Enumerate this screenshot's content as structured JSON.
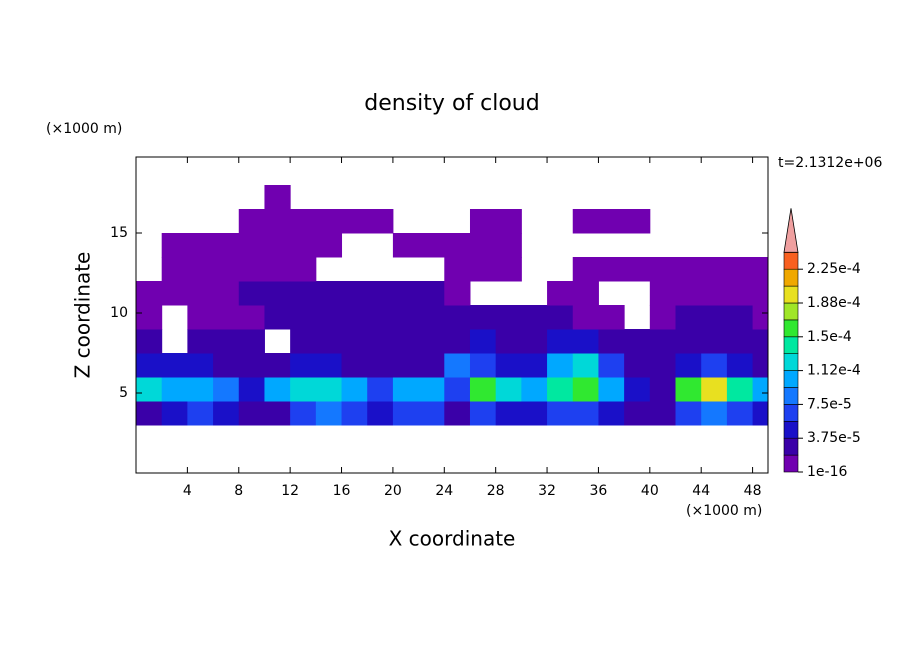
{
  "chart_data": {
    "type": "contour",
    "title": "density of cloud",
    "time_label": "t=2.1312e+06",
    "x_label": "X coordinate",
    "y_label": "Z coordinate",
    "x_unit": "(×1000 m)",
    "y_unit": "(×1000 m)",
    "xlim": [
      0,
      49.2
    ],
    "ylim": [
      0,
      19.75
    ],
    "xticks": [
      4,
      8,
      12,
      16,
      20,
      24,
      28,
      32,
      36,
      40,
      44,
      48
    ],
    "yticks": [
      5,
      10,
      15
    ],
    "x_edges": [
      0,
      2,
      4,
      6,
      8,
      10,
      12,
      14,
      16,
      18,
      20,
      22,
      24,
      26,
      28,
      30,
      32,
      34,
      36,
      38,
      40,
      42,
      44,
      46,
      48,
      50
    ],
    "z_edges": [
      3,
      4.5,
      6,
      7.5,
      9,
      10.5,
      12,
      13.5,
      15,
      16.5,
      18
    ],
    "values": [
      [
        2e-05,
        5e-05,
        6e-05,
        5e-05,
        2e-05,
        2e-05,
        6e-05,
        8e-05,
        7e-05,
        5e-05,
        7e-05,
        6e-05,
        3e-05,
        6e-05,
        5e-05,
        5e-05,
        6e-05,
        7e-05,
        4e-05,
        2e-05,
        2e-05,
        6e-05,
        8e-05,
        6e-05,
        4e-05
      ],
      [
        0.00012,
        0.0001,
        0.00011,
        9e-05,
        4e-05,
        0.0001,
        0.00012,
        0.00013,
        0.00011,
        6e-05,
        0.00011,
        0.0001,
        6e-05,
        0.00016,
        0.00012,
        0.00011,
        0.00014,
        0.00015,
        0.0001,
        4e-05,
        3e-05,
        0.00016,
        0.00019,
        0.00014,
        0.0001
      ],
      [
        4e-05,
        5e-05,
        4e-05,
        3e-05,
        2e-05,
        3e-05,
        4e-05,
        4e-05,
        3e-05,
        2e-05,
        3e-05,
        3e-05,
        8e-05,
        6e-05,
        4e-05,
        5e-05,
        0.0001,
        0.00012,
        7e-05,
        2e-05,
        2e-05,
        5e-05,
        6e-05,
        5e-05,
        3e-05
      ],
      [
        2e-05,
        null,
        2e-05,
        2e-05,
        2.5e-05,
        null,
        2e-05,
        2e-05,
        2e-05,
        2e-05,
        2.5e-05,
        2.5e-05,
        3e-05,
        4e-05,
        3e-05,
        3e-05,
        4e-05,
        4e-05,
        3e-05,
        2e-05,
        2e-05,
        2.5e-05,
        2.5e-05,
        2.5e-05,
        2e-05
      ],
      [
        1e-05,
        null,
        1e-05,
        1e-05,
        1.5e-05,
        2.5e-05,
        2.5e-05,
        2.5e-05,
        2.5e-05,
        2.5e-05,
        2.5e-05,
        2.5e-05,
        2.5e-05,
        2.5e-05,
        2e-05,
        2e-05,
        2e-05,
        1e-05,
        1e-05,
        null,
        1e-05,
        2e-05,
        2e-05,
        2e-05,
        1e-05
      ],
      [
        1e-05,
        1e-05,
        1e-05,
        1.5e-05,
        2e-05,
        2e-05,
        2.5e-05,
        2e-05,
        2.5e-05,
        2.5e-05,
        2e-05,
        2e-05,
        1e-05,
        null,
        null,
        null,
        1e-05,
        1e-05,
        null,
        null,
        1e-05,
        1e-05,
        1e-05,
        1e-05,
        1e-05
      ],
      [
        null,
        1e-05,
        1e-05,
        1e-05,
        1e-05,
        1e-05,
        1e-05,
        null,
        null,
        null,
        null,
        null,
        1e-05,
        1e-05,
        1e-05,
        null,
        null,
        1e-05,
        1e-05,
        1e-05,
        1e-05,
        1e-05,
        1e-05,
        1e-05,
        1e-05
      ],
      [
        null,
        1e-05,
        1e-05,
        1e-05,
        1e-05,
        1e-05,
        1e-05,
        1e-05,
        null,
        null,
        1e-05,
        1e-05,
        1e-05,
        1e-05,
        1e-05,
        null,
        null,
        null,
        null,
        null,
        null,
        null,
        null,
        null,
        null
      ],
      [
        null,
        null,
        null,
        null,
        1e-05,
        1e-05,
        1e-05,
        1e-05,
        1e-05,
        1e-05,
        null,
        null,
        null,
        1e-05,
        1e-05,
        null,
        null,
        1e-05,
        1e-05,
        1e-05,
        null,
        null,
        null,
        null,
        null
      ],
      [
        null,
        null,
        null,
        null,
        null,
        1e-05,
        null,
        null,
        null,
        null,
        null,
        null,
        null,
        null,
        null,
        null,
        null,
        null,
        null,
        null,
        null,
        null,
        null,
        null,
        null
      ]
    ],
    "levels": [
      {
        "value": 1e-16,
        "label": "1e-16"
      },
      1.875e-05,
      {
        "value": 3.75e-05,
        "label": "3.75e-5"
      },
      5.625e-05,
      {
        "value": 7.5e-05,
        "label": "7.5e-5"
      },
      9.375e-05,
      {
        "value": 0.0001125,
        "label": "1.12e-4"
      },
      0.00013125,
      {
        "value": 0.00015,
        "label": "1.5e-4"
      },
      0.00016875,
      {
        "value": 0.0001875,
        "label": "1.88e-4"
      },
      0.00020625,
      {
        "value": 0.000225,
        "label": "2.25e-4"
      },
      0.00024375
    ],
    "colors": [
      "#7000b0",
      "#3a00a8",
      "#1a10c8",
      "#1e40f0",
      "#1478ff",
      "#00a8ff",
      "#00d8d8",
      "#00e8a0",
      "#30e830",
      "#a0e628",
      "#e8e020",
      "#f0a800",
      "#f86020"
    ],
    "over_color": "#f0a0a0"
  }
}
